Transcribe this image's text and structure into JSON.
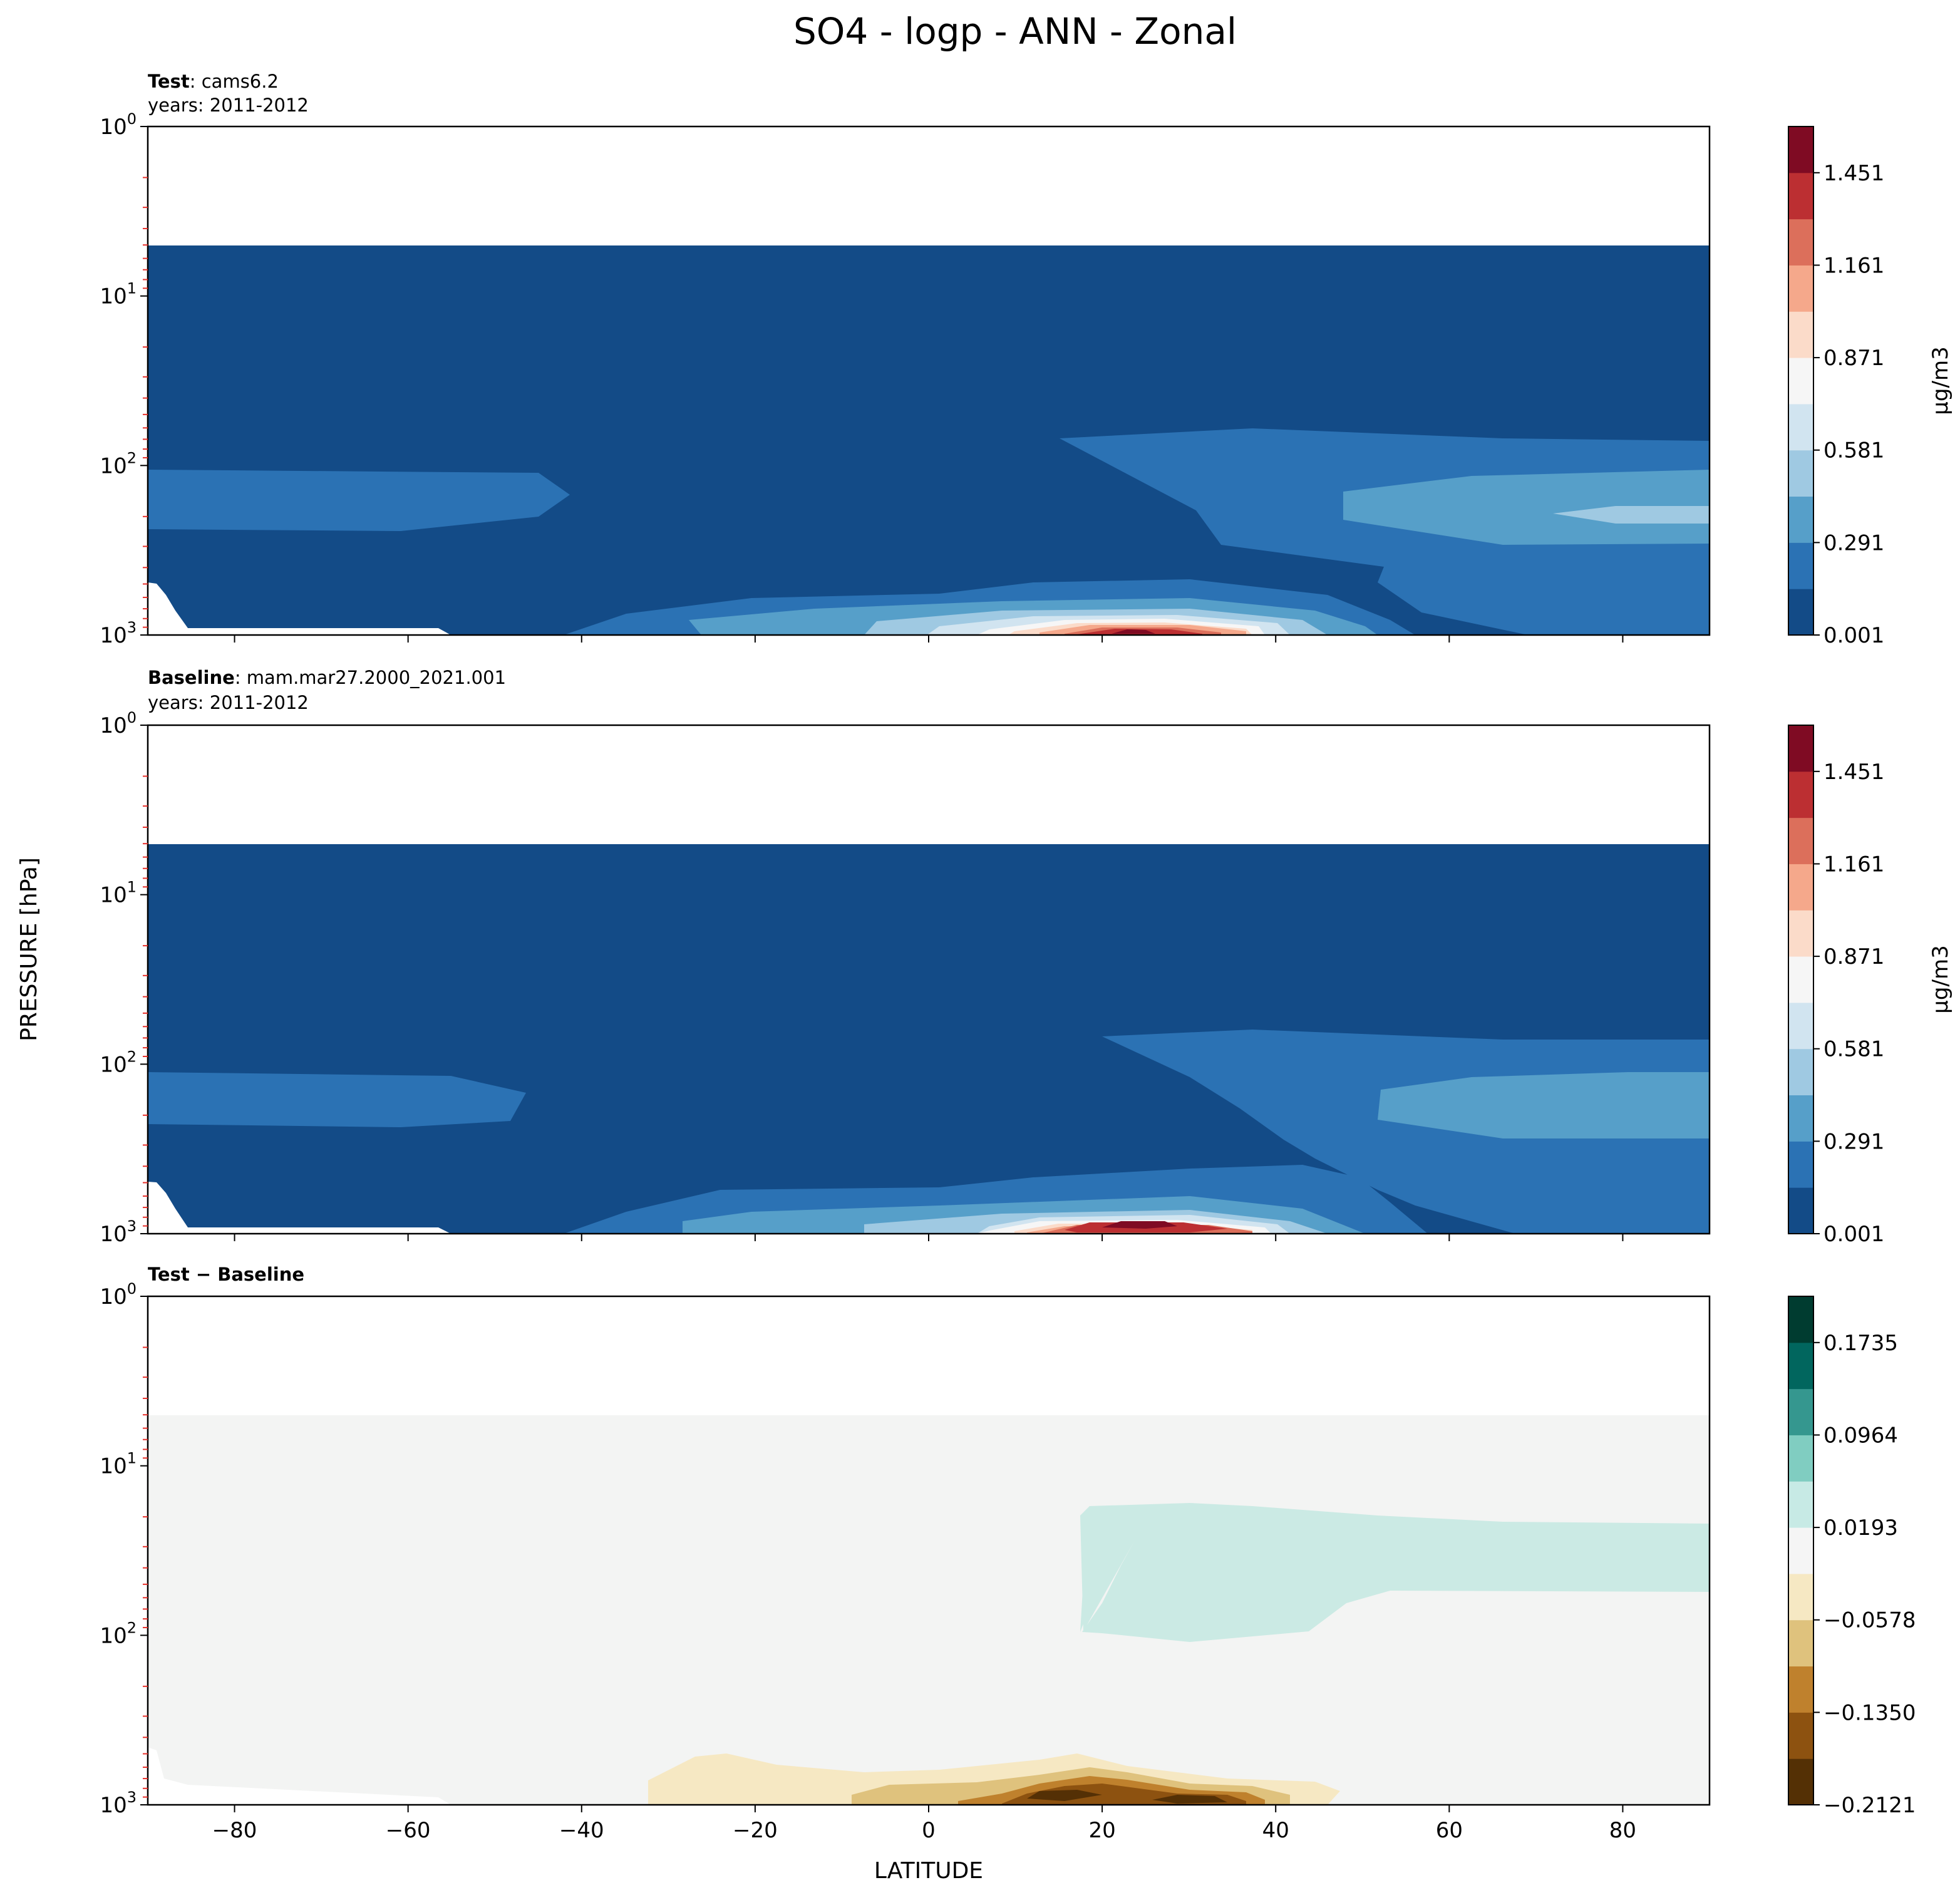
{
  "title": "SO4 - logp - ANN - Zonal",
  "xlabel": "LATITUDE",
  "ylabel": "PRESSURE [hPa]",
  "colors": {
    "sequential": [
      "#134b87",
      "#2b72b4",
      "#569fc9",
      "#9fc9e2",
      "#d1e4f0",
      "#f6f6f6",
      "#fbdbc9",
      "#f5a88b",
      "#dc6f5b",
      "#bc2f32",
      "#7f0b23"
    ],
    "diverging": [
      "#543005",
      "#8d5210",
      "#bf812d",
      "#dfc27d",
      "#f6e8c3",
      "#f5f5f5",
      "#c7eae5",
      "#80cdc1",
      "#35978f",
      "#01665e",
      "#003c30"
    ]
  },
  "chart_data": [
    {
      "type": "heatmap",
      "panel": "test",
      "label_bold": "Test",
      "label_text": ": cams6.2",
      "years_text": "years: 2011-2012",
      "xlim": [
        -90,
        90
      ],
      "ylim": [
        1000,
        1
      ],
      "yscale": "log",
      "x_ticks": [
        -80,
        -60,
        -40,
        -20,
        0,
        20,
        40,
        60,
        80
      ],
      "y_ticks": [
        "10^0",
        "10^1",
        "10^2",
        "10^3"
      ],
      "colorbar_label": "μg/m3",
      "colorbar_ticks": [
        "0.001",
        "0.291",
        "0.581",
        "0.871",
        "1.161",
        "1.451"
      ],
      "colorbar_levels": 11,
      "data_top_hpa": 5,
      "features": [
        {
          "desc": "near-surface sulfate maximum",
          "lat_center": 25,
          "p_center_hpa": 950,
          "max_value": 1.55
        },
        {
          "desc": "northern hemisphere mid-troposphere band",
          "lat_range": [
            50,
            90
          ],
          "p_range_hpa": [
            90,
            300
          ],
          "value": 0.35
        },
        {
          "desc": "southern hemisphere band",
          "lat_range": [
            -90,
            -45
          ],
          "p_range_hpa": [
            100,
            250
          ],
          "value": 0.15
        }
      ]
    },
    {
      "type": "heatmap",
      "panel": "baseline",
      "label_bold": "Baseline",
      "label_text": ": mam.mar27.2000_2021.001",
      "years_text": "years: 2011-2012",
      "xlim": [
        -90,
        90
      ],
      "ylim": [
        1000,
        1
      ],
      "yscale": "log",
      "x_ticks": [
        -80,
        -60,
        -40,
        -20,
        0,
        20,
        40,
        60,
        80
      ],
      "y_ticks": [
        "10^0",
        "10^1",
        "10^2",
        "10^3"
      ],
      "colorbar_label": "μg/m3",
      "colorbar_ticks": [
        "0.001",
        "0.291",
        "0.581",
        "0.871",
        "1.161",
        "1.451"
      ],
      "colorbar_levels": 11,
      "data_top_hpa": 5,
      "features": [
        {
          "desc": "near-surface sulfate maximum",
          "lat_center": 25,
          "p_center_hpa": 950,
          "max_value": 1.55
        },
        {
          "desc": "northern hemisphere mid-troposphere band",
          "lat_range": [
            52,
            90
          ],
          "p_range_hpa": [
            100,
            280
          ],
          "value": 0.35
        },
        {
          "desc": "southern hemisphere band",
          "lat_range": [
            -90,
            -50
          ],
          "p_range_hpa": [
            110,
            230
          ],
          "value": 0.15
        }
      ]
    },
    {
      "type": "heatmap",
      "panel": "difference",
      "label_bold": "Test − Baseline",
      "xlim": [
        -90,
        90
      ],
      "ylim": [
        1000,
        1
      ],
      "yscale": "log",
      "x_ticks": [
        -80,
        -60,
        -40,
        -20,
        0,
        20,
        40,
        60,
        80
      ],
      "y_ticks": [
        "10^0",
        "10^1",
        "10^2",
        "10^3"
      ],
      "colorbar_ticks": [
        "−0.2121",
        "−0.1350",
        "−0.0578",
        "0.0193",
        "0.0964",
        "0.1735"
      ],
      "colorbar_levels": 11,
      "data_top_hpa": 5,
      "features": [
        {
          "desc": "positive difference region",
          "lat_range": [
            13,
            90
          ],
          "p_range_hpa": [
            100,
            500
          ],
          "value": 0.03
        },
        {
          "desc": "negative near-surface region",
          "lat_range": [
            -32,
            48
          ],
          "p_range_hpa": [
            700,
            1000
          ],
          "min_value": -0.21
        }
      ]
    }
  ]
}
